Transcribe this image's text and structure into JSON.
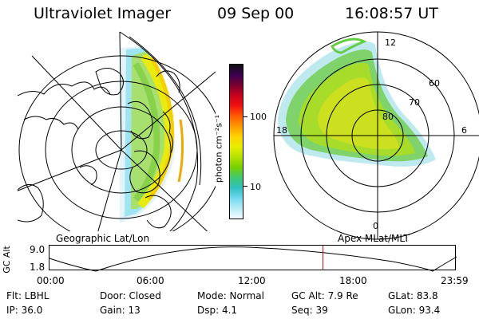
{
  "header": {
    "instrument": "Ultraviolet Imager",
    "date": "09 Sep 00",
    "time": "16:08:57 UT"
  },
  "left_map": {
    "caption": "Geographic Lat/Lon"
  },
  "right_map": {
    "caption": "Apex MLat/MLT",
    "mlt_labels": {
      "top": "12",
      "left": "18",
      "right": "6",
      "bottom": "0"
    },
    "lat_labels": [
      "60",
      "70",
      "80"
    ]
  },
  "colorbar": {
    "unit_label": "photon cm⁻²s⁻¹",
    "tick_labels": [
      "100",
      "10"
    ],
    "colors": [
      "#101010",
      "#3a0050",
      "#7a0030",
      "#c8001e",
      "#f01010",
      "#ff5a00",
      "#ff9a00",
      "#ffd000",
      "#e8ee00",
      "#b6e000",
      "#78d000",
      "#40c870",
      "#30c0c0",
      "#70d8ee",
      "#b8ecf8",
      "#f2fbff"
    ]
  },
  "timeline": {
    "axis_label": "GC Alt",
    "y_ticks": [
      "9.0",
      "1.8"
    ],
    "x_ticks": [
      "00:00",
      "06:00",
      "12:00",
      "18:00",
      "23:59"
    ],
    "marker_time": "16:08",
    "marker_color": "#e01010"
  },
  "info": {
    "flt": "Flt: LBHL",
    "door": "Door: Closed",
    "mode": "Mode: Normal",
    "gc_alt": "GC Alt: 7.9 Re",
    "glat": "GLat:  83.8",
    "ip": "IP: 36.0",
    "gain": "Gain: 13",
    "dsp": "Dsp:    4.1",
    "seq": "Seq: 39",
    "glon": "GLon:  93.4"
  }
}
